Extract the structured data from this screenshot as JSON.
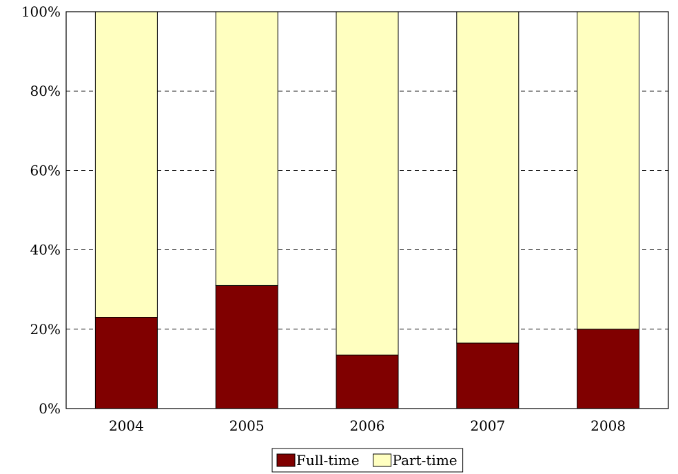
{
  "chart_data": {
    "type": "bar",
    "stacked": true,
    "categories": [
      "2004",
      "2005",
      "2006",
      "2007",
      "2008"
    ],
    "series": [
      {
        "name": "Full-time",
        "values": [
          23,
          31,
          13.5,
          16.5,
          20
        ],
        "color": "#800000"
      },
      {
        "name": "Part-time",
        "values": [
          77,
          69,
          86.5,
          83.5,
          80
        ],
        "color": "#ffffc0"
      }
    ],
    "ylim": [
      0,
      100
    ],
    "yticks": [
      0,
      20,
      40,
      60,
      80,
      100
    ],
    "ytick_labels": [
      "0%",
      "20%",
      "40%",
      "60%",
      "80%",
      "100%"
    ],
    "grid": "dashed-horizontal",
    "legend_position": "bottom-center"
  }
}
